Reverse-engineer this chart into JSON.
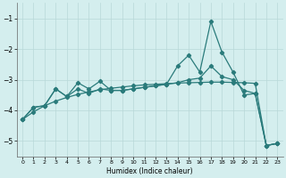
{
  "xlabel": "Humidex (Indice chaleur)",
  "line_color": "#2a7b7b",
  "background_color": "#d4eeee",
  "grid_color": "#b8d8d8",
  "ylim": [
    -5.5,
    -0.5
  ],
  "xlim": [
    -0.5,
    23.5
  ],
  "yticks": [
    -5,
    -4,
    -3,
    -2,
    -1
  ],
  "xticks": [
    0,
    1,
    2,
    3,
    4,
    5,
    6,
    7,
    8,
    9,
    10,
    11,
    12,
    13,
    14,
    15,
    16,
    17,
    18,
    19,
    20,
    21,
    22,
    23
  ],
  "line_smooth": [
    -4.3,
    -4.05,
    -3.85,
    -3.7,
    -3.58,
    -3.48,
    -3.4,
    -3.33,
    -3.28,
    -3.24,
    -3.2,
    -3.17,
    -3.15,
    -3.13,
    -3.11,
    -3.1,
    -3.09,
    -3.08,
    -3.08,
    -3.09,
    -3.1,
    -3.12,
    -5.15,
    -5.08
  ],
  "line_wiggly": [
    -4.3,
    -3.9,
    -3.85,
    -3.3,
    -3.55,
    -3.1,
    -3.3,
    -3.05,
    -3.35,
    -3.35,
    -3.3,
    -3.25,
    -3.2,
    -3.15,
    -2.55,
    -2.2,
    -2.75,
    -1.1,
    -2.1,
    -2.75,
    -3.5,
    -3.45,
    -5.15,
    -5.08
  ],
  "line_mid": [
    -4.3,
    -3.9,
    -3.85,
    -3.3,
    -3.55,
    -3.3,
    -3.45,
    -3.3,
    -3.35,
    -3.35,
    -3.3,
    -3.25,
    -3.2,
    -3.15,
    -3.1,
    -3.0,
    -2.95,
    -2.55,
    -2.9,
    -3.0,
    -3.35,
    -3.45,
    -5.15,
    -5.08
  ]
}
